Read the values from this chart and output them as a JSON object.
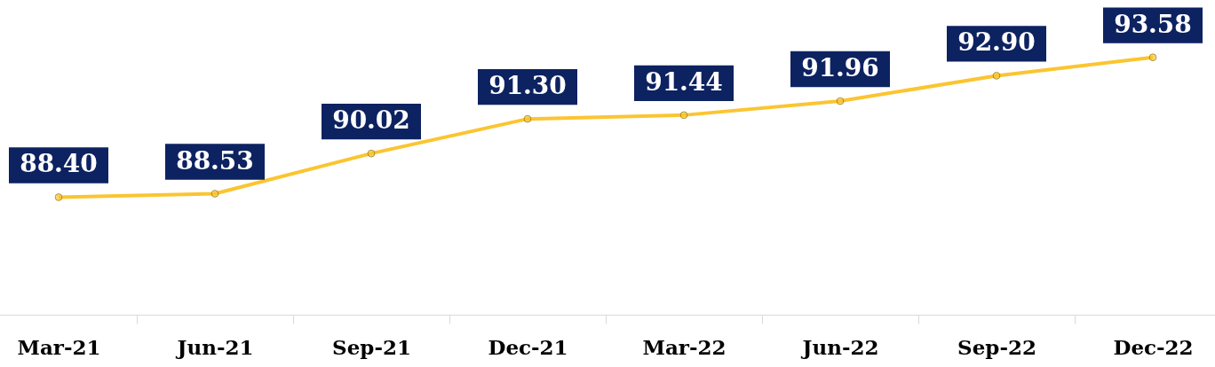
{
  "chart_data": {
    "type": "line",
    "categories": [
      "Mar-21",
      "Jun-21",
      "Sep-21",
      "Dec-21",
      "Mar-22",
      "Jun-22",
      "Sep-22",
      "Dec-22"
    ],
    "series": [
      {
        "color": "#fbc531",
        "values": [
          88.4,
          88.53,
          90.02,
          91.3,
          91.44,
          91.96,
          92.9,
          93.58
        ],
        "value_labels": [
          "88.40",
          "88.53",
          "90.02",
          "91.30",
          "91.44",
          "91.96",
          "92.90",
          "93.58"
        ]
      }
    ],
    "marker": "circle",
    "grid": false
  }
}
